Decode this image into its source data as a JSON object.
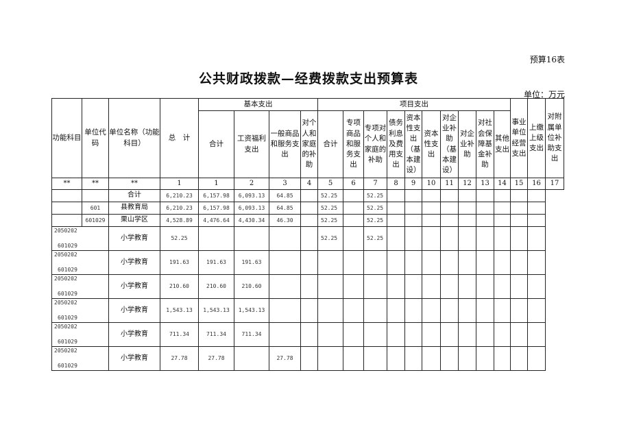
{
  "table_no": "预算16表",
  "title": "公共财政拨款—经费拨款支出预算表",
  "unit": "单位：万元",
  "headers": {
    "func": "功能科目",
    "code": "单位代码",
    "name": "单位名称（功能科目）",
    "total": "总　计",
    "basic": "基本支出",
    "project": "项目支出",
    "basic_cols": [
      "合计",
      "工资福利支出",
      "一般商品和服务支出",
      "对个人和家庭的补助"
    ],
    "project_cols": [
      "合计",
      "专项商品和服务支出",
      "专项对个人和家庭的补助",
      "债务利息及费用支出",
      "资本性支出（基本建设）",
      "资本性支出",
      "对企业补助（基本建设）",
      "对企业补助",
      "对社会保障基金补助",
      "其他支出"
    ],
    "tail_cols": [
      "事业单位经营支出",
      "上缴上级支出",
      "对附属单位补助支出"
    ]
  },
  "index_row": [
    "**",
    "**",
    "**",
    "1",
    "1",
    "2",
    "3",
    "4",
    "5",
    "6",
    "7",
    "8",
    "9",
    "10",
    "11",
    "12",
    "13",
    "14",
    "15",
    "16",
    "17"
  ],
  "summary_rows": [
    {
      "func": "",
      "code": "",
      "name": "合计",
      "vals": [
        "6,210.23",
        "6,157.98",
        "6,093.13",
        "64.85",
        "",
        "52.25",
        "",
        "52.25"
      ]
    },
    {
      "func": "",
      "code": "601",
      "name": "县教育局",
      "vals": [
        "6,210.23",
        "6,157.98",
        "6,093.13",
        "64.85",
        "",
        "52.25",
        "",
        "52.25"
      ]
    },
    {
      "func": "",
      "code": "601029",
      "name": "栗山学区",
      "vals": [
        "4,528.89",
        "4,476.64",
        "4,430.34",
        "46.30",
        "",
        "52.25",
        "",
        "52.25"
      ]
    }
  ],
  "detail_rows": [
    {
      "func": "2050202",
      "code": "601029",
      "name": "小学教育",
      "vals": [
        "52.25",
        "",
        "",
        "",
        "",
        "52.25",
        "",
        "52.25"
      ]
    },
    {
      "func": "2050202",
      "code": "601029",
      "name": "小学教育",
      "vals": [
        "191.63",
        "191.63",
        "191.63",
        "",
        "",
        "",
        "",
        ""
      ]
    },
    {
      "func": "2050202",
      "code": "601029",
      "name": "小学教育",
      "vals": [
        "210.60",
        "210.60",
        "210.60",
        "",
        "",
        "",
        "",
        ""
      ]
    },
    {
      "func": "2050202",
      "code": "601029",
      "name": "小学教育",
      "vals": [
        "1,543.13",
        "1,543.13",
        "1,543.13",
        "",
        "",
        "",
        "",
        ""
      ]
    },
    {
      "func": "2050202",
      "code": "601029",
      "name": "小学教育",
      "vals": [
        "711.34",
        "711.34",
        "711.34",
        "",
        "",
        "",
        "",
        ""
      ]
    },
    {
      "func": "2050202",
      "code": "601029",
      "name": "小学教育",
      "vals": [
        "27.78",
        "27.78",
        "",
        "27.78",
        "",
        "",
        "",
        ""
      ]
    }
  ]
}
